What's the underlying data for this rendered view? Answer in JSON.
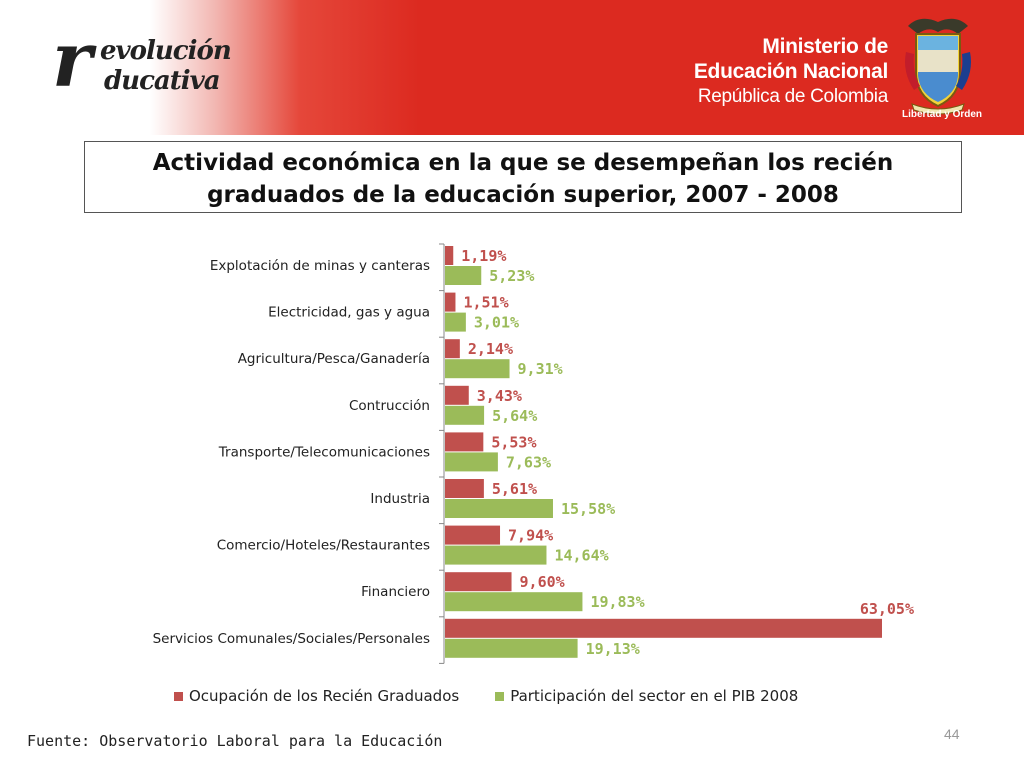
{
  "header": {
    "logo": {
      "initial": "r",
      "line1": "evolución",
      "line2": "ducativa",
      "full": "revolución educativa"
    },
    "ministry": {
      "line1": "Ministerio de",
      "line2": "Educación Nacional",
      "line3": "República de Colombia"
    },
    "crest_motto": "Libertad y Orden"
  },
  "colors": {
    "series_red": "#c0504d",
    "series_green": "#9bbb59",
    "header_red": "#dc2a20"
  },
  "chart_data": {
    "type": "bar",
    "orientation": "horizontal",
    "title": "Actividad económica en la que se desempeñan los recién graduados de la educación superior, 2007 - 2008",
    "title_lines": [
      "Actividad económica en la que se desempeñan los recién",
      "graduados de la educación superior, 2007 - 2008"
    ],
    "categories": [
      "Explotación de minas y canteras",
      "Electricidad, gas y agua",
      "Agricultura/Pesca/Ganadería",
      "Contrucción",
      "Transporte/Telecomunicaciones",
      "Industria",
      "Comercio/Hoteles/Restaurantes",
      "Financiero",
      "Servicios Comunales/Sociales/Personales"
    ],
    "series": [
      {
        "name": "Ocupación de los Recién Graduados",
        "color": "#c0504d",
        "values": [
          1.19,
          1.51,
          2.14,
          3.43,
          5.53,
          5.61,
          7.94,
          9.6,
          63.05
        ],
        "labels": [
          "1,19%",
          "1,51%",
          "2,14%",
          "3,43%",
          "5,53%",
          "5,61%",
          "7,94%",
          "9,60%",
          "63,05%"
        ]
      },
      {
        "name": "Participación del sector en el PIB 2008",
        "color": "#9bbb59",
        "values": [
          5.23,
          3.01,
          9.31,
          5.64,
          7.63,
          15.58,
          14.64,
          19.83,
          19.13
        ],
        "labels": [
          "5,23%",
          "3,01%",
          "9,31%",
          "5,64%",
          "7,63%",
          "15,58%",
          "14,64%",
          "19,83%",
          "19,13%"
        ]
      }
    ],
    "xlim": [
      0,
      63.05
    ],
    "grid": false,
    "legend": "bottom"
  },
  "footer": {
    "source": "Fuente: Observatorio Laboral para la Educación",
    "page_number": "44"
  }
}
